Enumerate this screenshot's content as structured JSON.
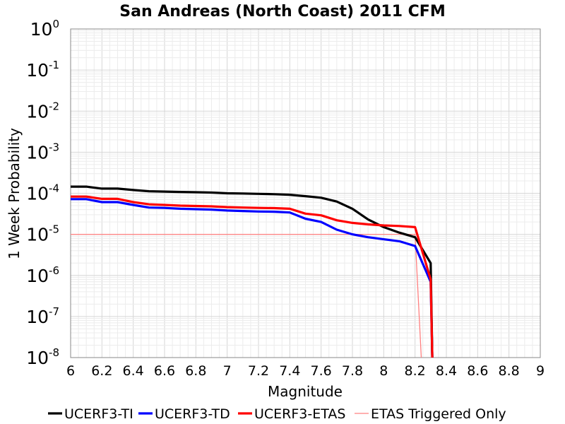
{
  "chart_data": {
    "type": "line",
    "title": "San Andreas (North Coast) 2011 CFM",
    "xlabel": "Magnitude",
    "ylabel": "1 Week Probability",
    "xlim": [
      6,
      9
    ],
    "ylim": [
      1e-08,
      1
    ],
    "yscale": "log",
    "grid": true,
    "legend_position": "bottom",
    "x_ticks": [
      "6",
      "6.2",
      "6.4",
      "6.6",
      "6.8",
      "7",
      "7.2",
      "7.4",
      "7.6",
      "7.8",
      "8",
      "8.2",
      "8.4",
      "8.6",
      "8.8",
      "9"
    ],
    "y_ticks": [
      {
        "base": "10",
        "exp": "0"
      },
      {
        "base": "10",
        "exp": "-1"
      },
      {
        "base": "10",
        "exp": "-2"
      },
      {
        "base": "10",
        "exp": "-3"
      },
      {
        "base": "10",
        "exp": "-4"
      },
      {
        "base": "10",
        "exp": "-5"
      },
      {
        "base": "10",
        "exp": "-6"
      },
      {
        "base": "10",
        "exp": "-7"
      },
      {
        "base": "10",
        "exp": "-8"
      }
    ],
    "series": [
      {
        "name": "UCERF3-TI",
        "color": "#000000",
        "points": [
          [
            6.0,
            0.000145
          ],
          [
            6.1,
            0.000145
          ],
          [
            6.2,
            0.00013
          ],
          [
            6.3,
            0.00013
          ],
          [
            6.4,
            0.00012
          ],
          [
            6.5,
            0.000112
          ],
          [
            6.6,
            0.00011
          ],
          [
            6.7,
            0.000108
          ],
          [
            6.8,
            0.000106
          ],
          [
            6.9,
            0.000104
          ],
          [
            7.0,
            0.0001
          ],
          [
            7.1,
            9.9e-05
          ],
          [
            7.2,
            9.7e-05
          ],
          [
            7.3,
            9.5e-05
          ],
          [
            7.4,
            9.2e-05
          ],
          [
            7.5,
            8.5e-05
          ],
          [
            7.6,
            7.8e-05
          ],
          [
            7.7,
            6.3e-05
          ],
          [
            7.8,
            4.2e-05
          ],
          [
            7.9,
            2.3e-05
          ],
          [
            8.0,
            1.5e-05
          ],
          [
            8.1,
            1.1e-05
          ],
          [
            8.2,
            8.5e-06
          ],
          [
            8.3,
            2e-06
          ],
          [
            8.31,
            1e-08
          ]
        ]
      },
      {
        "name": "UCERF3-TD",
        "color": "#0000ff",
        "points": [
          [
            6.0,
            7.2e-05
          ],
          [
            6.1,
            7.2e-05
          ],
          [
            6.2,
            6.1e-05
          ],
          [
            6.3,
            6.1e-05
          ],
          [
            6.4,
            5.2e-05
          ],
          [
            6.5,
            4.5e-05
          ],
          [
            6.6,
            4.4e-05
          ],
          [
            6.7,
            4.2e-05
          ],
          [
            6.8,
            4.1e-05
          ],
          [
            6.9,
            4e-05
          ],
          [
            7.0,
            3.8e-05
          ],
          [
            7.1,
            3.7e-05
          ],
          [
            7.2,
            3.6e-05
          ],
          [
            7.3,
            3.55e-05
          ],
          [
            7.4,
            3.4e-05
          ],
          [
            7.5,
            2.4e-05
          ],
          [
            7.6,
            2e-05
          ],
          [
            7.7,
            1.3e-05
          ],
          [
            7.8,
            1e-05
          ],
          [
            7.9,
            8.5e-06
          ],
          [
            8.0,
            7.6e-06
          ],
          [
            8.1,
            6.8e-06
          ],
          [
            8.2,
            5.2e-06
          ],
          [
            8.3,
            7e-07
          ],
          [
            8.31,
            1e-08
          ]
        ]
      },
      {
        "name": "UCERF3-ETAS",
        "color": "#ff0000",
        "points": [
          [
            6.0,
            8.3e-05
          ],
          [
            6.1,
            8.3e-05
          ],
          [
            6.2,
            7.3e-05
          ],
          [
            6.3,
            7.3e-05
          ],
          [
            6.4,
            6.1e-05
          ],
          [
            6.5,
            5.4e-05
          ],
          [
            6.6,
            5.2e-05
          ],
          [
            6.7,
            5e-05
          ],
          [
            6.8,
            4.9e-05
          ],
          [
            6.9,
            4.8e-05
          ],
          [
            7.0,
            4.6e-05
          ],
          [
            7.1,
            4.5e-05
          ],
          [
            7.2,
            4.4e-05
          ],
          [
            7.3,
            4.35e-05
          ],
          [
            7.4,
            4.2e-05
          ],
          [
            7.5,
            3.2e-05
          ],
          [
            7.6,
            2.9e-05
          ],
          [
            7.7,
            2.2e-05
          ],
          [
            7.8,
            1.9e-05
          ],
          [
            7.9,
            1.75e-05
          ],
          [
            8.0,
            1.65e-05
          ],
          [
            8.1,
            1.6e-05
          ],
          [
            8.2,
            1.5e-05
          ],
          [
            8.3,
            8e-07
          ],
          [
            8.31,
            1e-08
          ]
        ]
      },
      {
        "name": "ETAS Triggered Only",
        "color": "#ff8080",
        "points": [
          [
            6.0,
            1e-05
          ],
          [
            8.2,
            1e-05
          ],
          [
            8.24,
            1e-08
          ]
        ]
      }
    ]
  }
}
